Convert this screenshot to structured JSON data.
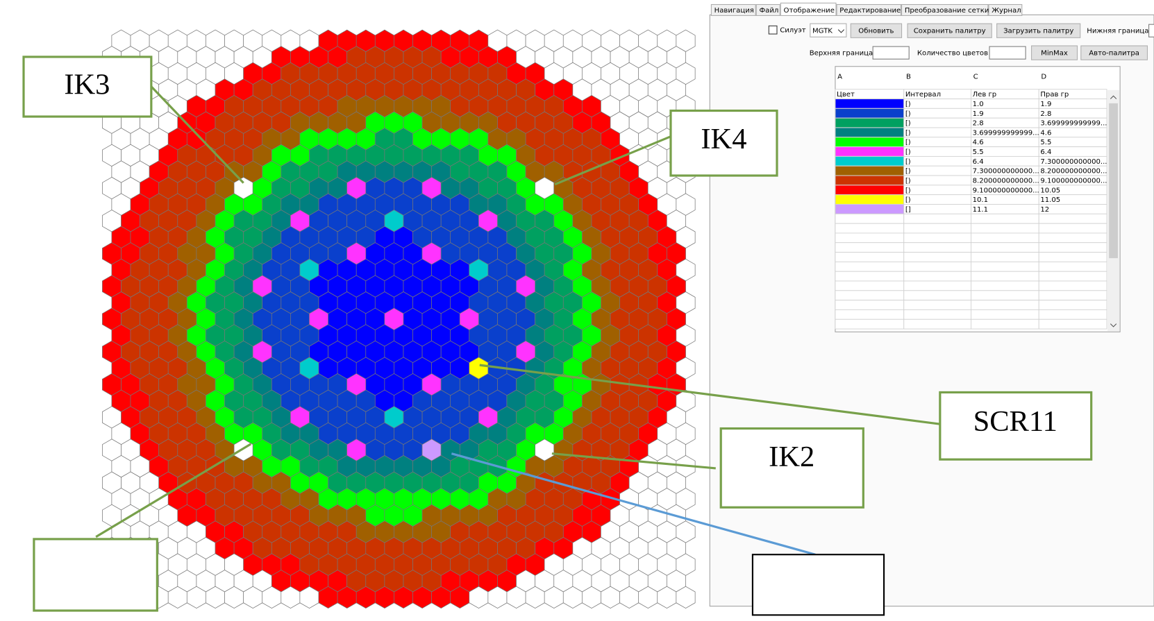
{
  "tabs": [
    "Навигация",
    "Файл",
    "Отображение",
    "Редактирование",
    "Преобразование сетки",
    "Журнал"
  ],
  "toolbar": {
    "silhouette": "Силуэт",
    "select": "MGTK",
    "refresh": "Обновить",
    "save_palette": "Сохранить палитру",
    "load_palette": "Загрузить палитру",
    "lower_bound": "Нижняя граница",
    "upper_bound": "Верхняя граница",
    "color_count": "Количество цветов",
    "minmax": "MinMax",
    "auto_palette": "Авто-палитра"
  },
  "table": {
    "columns": [
      "A",
      "B",
      "C",
      "D"
    ],
    "headers": [
      "Цвет",
      "Интервал",
      "Лев гр",
      "Прав гр"
    ],
    "rows": [
      {
        "color": "#0000ff",
        "interval": "[)",
        "left": "1.0",
        "right": "1.9"
      },
      {
        "color": "#0a40cc",
        "interval": "[)",
        "left": "1.9",
        "right": "2.8"
      },
      {
        "color": "#00a060",
        "interval": "[)",
        "left": "2.8",
        "right": "3.699999999999..."
      },
      {
        "color": "#008080",
        "interval": "[)",
        "left": "3.699999999999...",
        "right": "4.6"
      },
      {
        "color": "#00ff00",
        "interval": "[)",
        "left": "4.6",
        "right": "5.5"
      },
      {
        "color": "#ff33ff",
        "interval": "[)",
        "left": "5.5",
        "right": "6.4"
      },
      {
        "color": "#00cccc",
        "interval": "[)",
        "left": "6.4",
        "right": "7.300000000000..."
      },
      {
        "color": "#a06000",
        "interval": "[)",
        "left": "7.300000000000...",
        "right": "8.200000000000..."
      },
      {
        "color": "#cc3300",
        "interval": "[)",
        "left": "8.200000000000...",
        "right": "9.100000000000..."
      },
      {
        "color": "#ff0000",
        "interval": "[)",
        "left": "9.100000000000...",
        "right": "10.05"
      },
      {
        "color": "#ffff00",
        "interval": "[)",
        "left": "10.1",
        "right": "11.05"
      },
      {
        "color": "#cc99ff",
        "interval": "[]",
        "left": "11.1",
        "right": "12"
      }
    ]
  },
  "callouts": [
    "IK3",
    "IK4",
    "SCR11",
    "IK2"
  ]
}
